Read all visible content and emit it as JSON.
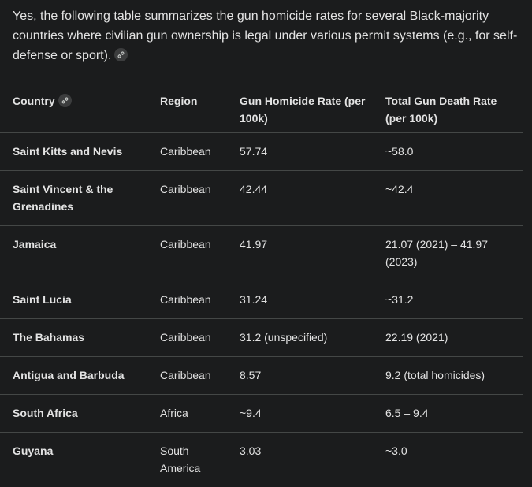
{
  "intro": "Yes, the following table summarizes the gun homicide rates for several Black-majority countries where civilian gun ownership is legal under various permit systems (e.g., for self-defense or sport).",
  "table": {
    "headers": [
      "Country",
      "Region",
      "Gun Homicide Rate (per 100k)",
      "Total Gun Death Rate (per 100k)"
    ],
    "rows": [
      [
        "Saint Kitts and Nevis",
        "Caribbean",
        "57.74",
        "~58.0"
      ],
      [
        "Saint Vincent & the Grenadines",
        "Caribbean",
        "42.44",
        "~42.4"
      ],
      [
        "Jamaica",
        "Caribbean",
        "41.97",
        "21.07 (2021) – 41.97 (2023)"
      ],
      [
        "Saint Lucia",
        "Caribbean",
        "31.24",
        "~31.2"
      ],
      [
        "The Bahamas",
        "Caribbean",
        "31.2 (unspecified)",
        "22.19 (2021)"
      ],
      [
        "Antigua and Barbuda",
        "Caribbean",
        "8.57",
        "9.2 (total homicides)"
      ],
      [
        "South Africa",
        "Africa",
        "~9.4",
        "6.5 – 9.4"
      ],
      [
        "Guyana",
        "South America",
        "3.03",
        "~3.0"
      ]
    ]
  }
}
